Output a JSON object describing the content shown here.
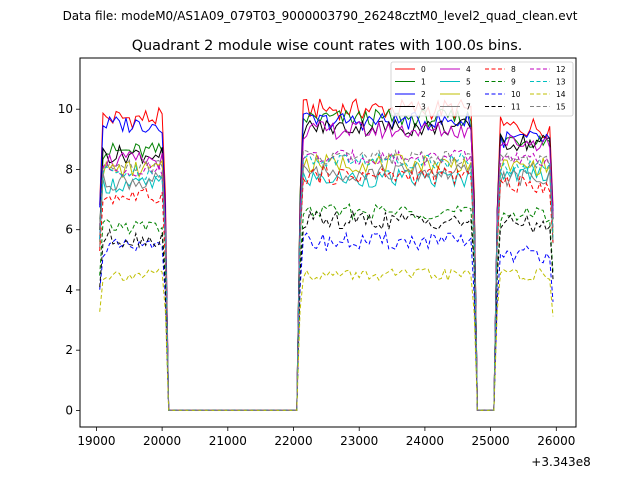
{
  "header": {
    "data_file": "Data file: modeM0/AS1A09_079T03_9000003790_26248cztM0_level2_quad_clean.evt"
  },
  "chart_data": {
    "type": "line",
    "title": "Quadrant 2 module wise count rates with 100.0s bins.",
    "xlabel": "",
    "ylabel": "",
    "offset_label": "+3.343e8",
    "xlim": [
      18750,
      26300
    ],
    "ylim": [
      -0.55,
      11.7
    ],
    "xticks": [
      19000,
      20000,
      21000,
      22000,
      23000,
      24000,
      25000,
      26000
    ],
    "xtick_labels": [
      "19000",
      "20000",
      "21000",
      "22000",
      "23000",
      "24000",
      "25000",
      "26000"
    ],
    "yticks": [
      0,
      2,
      4,
      6,
      8,
      10
    ],
    "ytick_labels": [
      "0",
      "2",
      "4",
      "6",
      "8",
      "10"
    ],
    "legend_position": "top-right",
    "segments": [
      {
        "start": 19050,
        "end": 20050,
        "step": 50
      },
      {
        "start": 22100,
        "end": 24750,
        "step": 50
      },
      {
        "start": 25100,
        "end": 25950,
        "step": 50
      }
    ],
    "series": [
      {
        "name": "0",
        "color": "#ff0000",
        "dash": "solid",
        "levels": [
          9.7,
          10.0,
          9.4
        ],
        "ripple": 0.35
      },
      {
        "name": "1",
        "color": "#008000",
        "dash": "solid",
        "levels": [
          8.6,
          9.7,
          9.0
        ],
        "ripple": 0.3
      },
      {
        "name": "2",
        "color": "#0000ff",
        "dash": "solid",
        "levels": [
          9.5,
          9.6,
          9.0
        ],
        "ripple": 0.3
      },
      {
        "name": "3",
        "color": "#000000",
        "dash": "solid",
        "levels": [
          8.5,
          9.4,
          8.9
        ],
        "ripple": 0.3
      },
      {
        "name": "4",
        "color": "#bf00bf",
        "dash": "solid",
        "levels": [
          8.3,
          9.3,
          8.9
        ],
        "ripple": 0.3
      },
      {
        "name": "5",
        "color": "#00bfbf",
        "dash": "solid",
        "levels": [
          7.5,
          7.7,
          7.9
        ],
        "ripple": 0.3
      },
      {
        "name": "6",
        "color": "#bfbf00",
        "dash": "solid",
        "levels": [
          8.0,
          8.2,
          8.1
        ],
        "ripple": 0.3
      },
      {
        "name": "7",
        "color": "#808080",
        "dash": "solid",
        "levels": [
          7.6,
          7.9,
          7.7
        ],
        "ripple": 0.3
      },
      {
        "name": "8",
        "color": "#ff0000",
        "dash": "dashed",
        "levels": [
          7.1,
          7.8,
          7.5
        ],
        "ripple": 0.3
      },
      {
        "name": "9",
        "color": "#008000",
        "dash": "dashed",
        "levels": [
          6.1,
          6.6,
          6.5
        ],
        "ripple": 0.25
      },
      {
        "name": "10",
        "color": "#0000ff",
        "dash": "dashed",
        "levels": [
          5.4,
          5.6,
          5.2
        ],
        "ripple": 0.3
      },
      {
        "name": "11",
        "color": "#000000",
        "dash": "dashed",
        "levels": [
          5.7,
          6.3,
          6.2
        ],
        "ripple": 0.3
      },
      {
        "name": "12",
        "color": "#bf00bf",
        "dash": "dashed",
        "levels": [
          8.0,
          8.4,
          8.3
        ],
        "ripple": 0.25
      },
      {
        "name": "13",
        "color": "#00bfbf",
        "dash": "dashed",
        "levels": [
          7.9,
          8.3,
          8.1
        ],
        "ripple": 0.25
      },
      {
        "name": "14",
        "color": "#bfbf00",
        "dash": "dashed",
        "levels": [
          4.5,
          4.5,
          4.5
        ],
        "ripple": 0.2
      },
      {
        "name": "15",
        "color": "#808080",
        "dash": "dashed",
        "levels": [
          8.1,
          8.4,
          8.3
        ],
        "ripple": 0.25
      }
    ]
  }
}
